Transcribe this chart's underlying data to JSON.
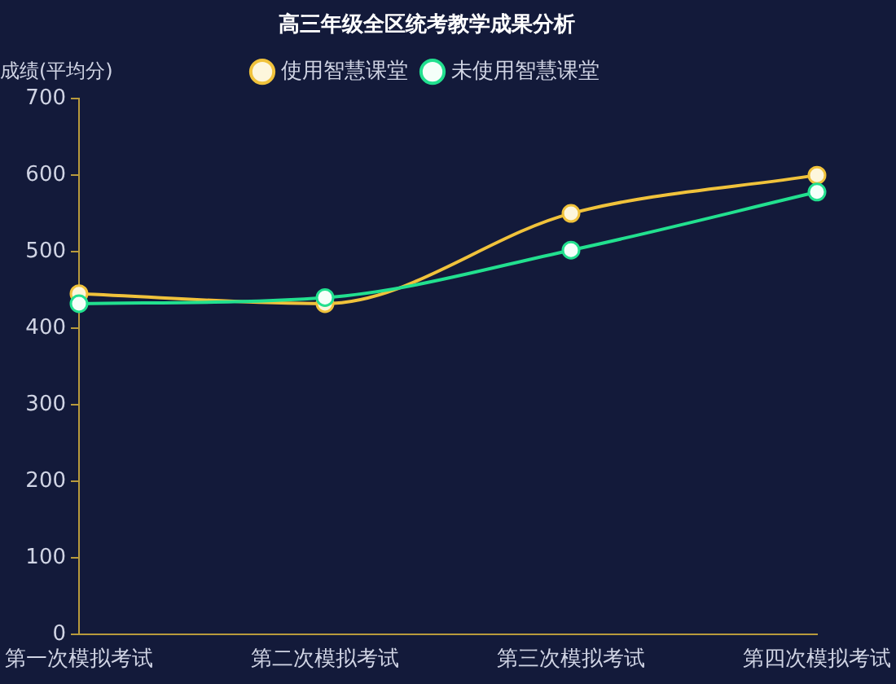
{
  "chart_data": {
    "type": "line",
    "title": "高三年级全区统考教学成果分析",
    "ylabel": "成绩(平均分)",
    "categories": [
      "第一次模拟考试",
      "第二次模拟考试",
      "第三次模拟考试",
      "第四次模拟考试"
    ],
    "series": [
      {
        "name": "使用智慧课堂",
        "color": "#f0c23b",
        "values": [
          445,
          432,
          550,
          600
        ]
      },
      {
        "name": "未使用智慧课堂",
        "color": "#22e08f",
        "values": [
          432,
          440,
          502,
          578
        ]
      }
    ],
    "ylim": [
      0,
      700
    ],
    "yticks": [
      0,
      100,
      200,
      300,
      400,
      500,
      600,
      700
    ],
    "grid": false,
    "legend": "top",
    "marker": "circle",
    "line_style": "solid"
  }
}
